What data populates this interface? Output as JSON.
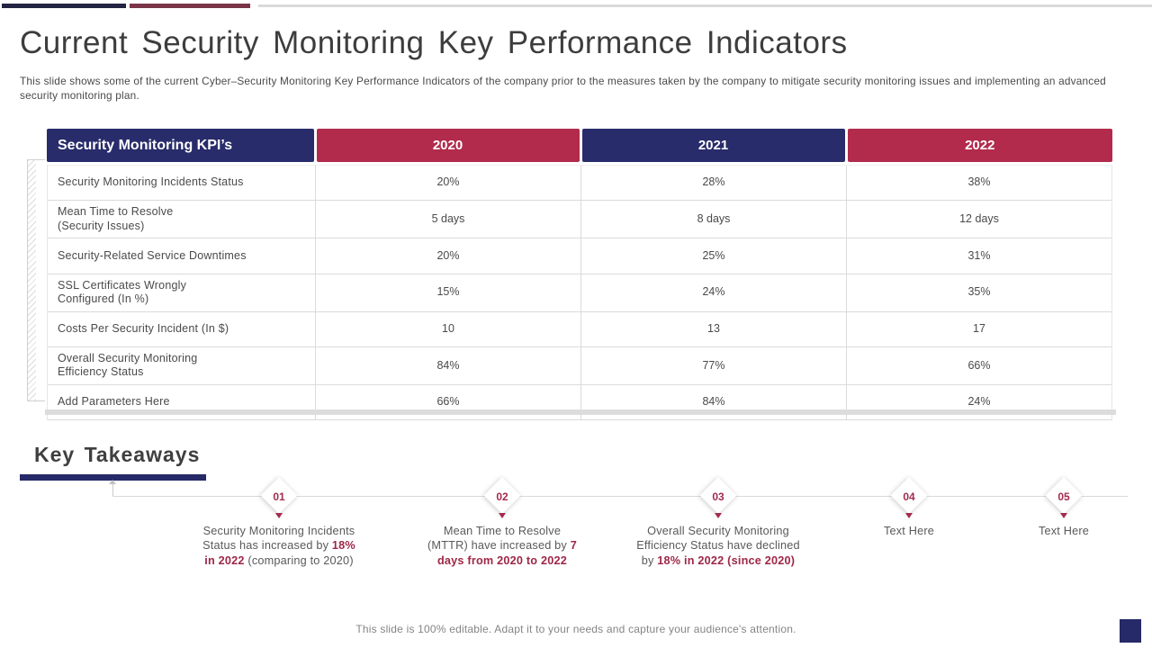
{
  "slide": {
    "title": "Current Security Monitoring Key Performance Indicators",
    "subtitle": "This slide shows some of the current Cyber–Security Monitoring Key Performance Indicators of the company prior to the measures taken by the company to mitigate security monitoring issues and implementing an advanced security monitoring plan.",
    "footer_note": "This slide is 100% editable. Adapt it to your needs and capture your audience's attention."
  },
  "colors": {
    "header_navy": "#282C6A",
    "header_crimson": "#B22B4C",
    "accent_text": "#9E2747",
    "underline_navy": "#262A68",
    "topbar_navy": "#232342",
    "topbar_maroon": "#7A3448"
  },
  "table": {
    "columns": [
      "Security Monitoring KPI’s",
      "2020",
      "2021",
      "2022"
    ],
    "rows": [
      {
        "label": "Security Monitoring Incidents Status",
        "values": [
          "20%",
          "28%",
          "38%"
        ]
      },
      {
        "label": "Mean Time to Resolve\n(Security Issues)",
        "values": [
          "5 days",
          "8 days",
          "12 days"
        ]
      },
      {
        "label": "Security-Related Service Downtimes",
        "values": [
          "20%",
          "25%",
          "31%"
        ]
      },
      {
        "label": "SSL Certificates Wrongly\nConfigured (In %)",
        "values": [
          "15%",
          "24%",
          "35%"
        ]
      },
      {
        "label": "Costs Per Security Incident (In $)",
        "values": [
          "10",
          "13",
          "17"
        ]
      },
      {
        "label": "Overall Security Monitoring\nEfficiency Status",
        "values": [
          "84%",
          "77%",
          "66%"
        ]
      },
      {
        "label": "Add Parameters Here",
        "values": [
          "66%",
          "84%",
          "24%"
        ]
      }
    ]
  },
  "takeaways": {
    "heading": "Key Takeaways",
    "items": [
      {
        "number": "01",
        "text_pre": "Security Monitoring Incidents Status has increased by ",
        "text_bold": "18% in 2022",
        "text_post": " (comparing to 2020)"
      },
      {
        "number": "02",
        "text_pre": "Mean Time to Resolve (MTTR) have increased by ",
        "text_bold": "7 days from 2020 to 2022",
        "text_post": ""
      },
      {
        "number": "03",
        "text_pre": "Overall Security Monitoring Efficiency Status have declined by ",
        "text_bold": "18% in 2022 (since 2020)",
        "text_post": ""
      },
      {
        "number": "04",
        "text_pre": "Text Here",
        "text_bold": "",
        "text_post": ""
      },
      {
        "number": "05",
        "text_pre": "Text Here",
        "text_bold": "",
        "text_post": ""
      }
    ]
  }
}
